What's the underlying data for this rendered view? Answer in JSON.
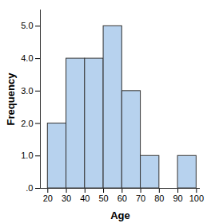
{
  "chart_data": {
    "type": "histogram",
    "x_label": "Age",
    "y_label": "Frequency",
    "bins": [
      20,
      30,
      40,
      50,
      60,
      70,
      80,
      90,
      100
    ],
    "values": [
      2,
      4,
      4,
      5,
      3,
      1,
      0,
      1
    ],
    "color": "#b7d2ee",
    "xlim": [
      16,
      102
    ],
    "xticks": [
      20,
      30,
      40,
      50,
      60,
      70,
      80,
      90,
      100
    ],
    "ylim": [
      0,
      5.5
    ],
    "yticks": [
      {
        "value": 0,
        "label": ".0"
      },
      {
        "value": 1,
        "label": "1.0"
      },
      {
        "value": 2,
        "label": "2.0"
      },
      {
        "value": 3,
        "label": "3.0"
      },
      {
        "value": 4,
        "label": "4.0"
      },
      {
        "value": 5,
        "label": "5.0"
      }
    ],
    "grid": false
  }
}
